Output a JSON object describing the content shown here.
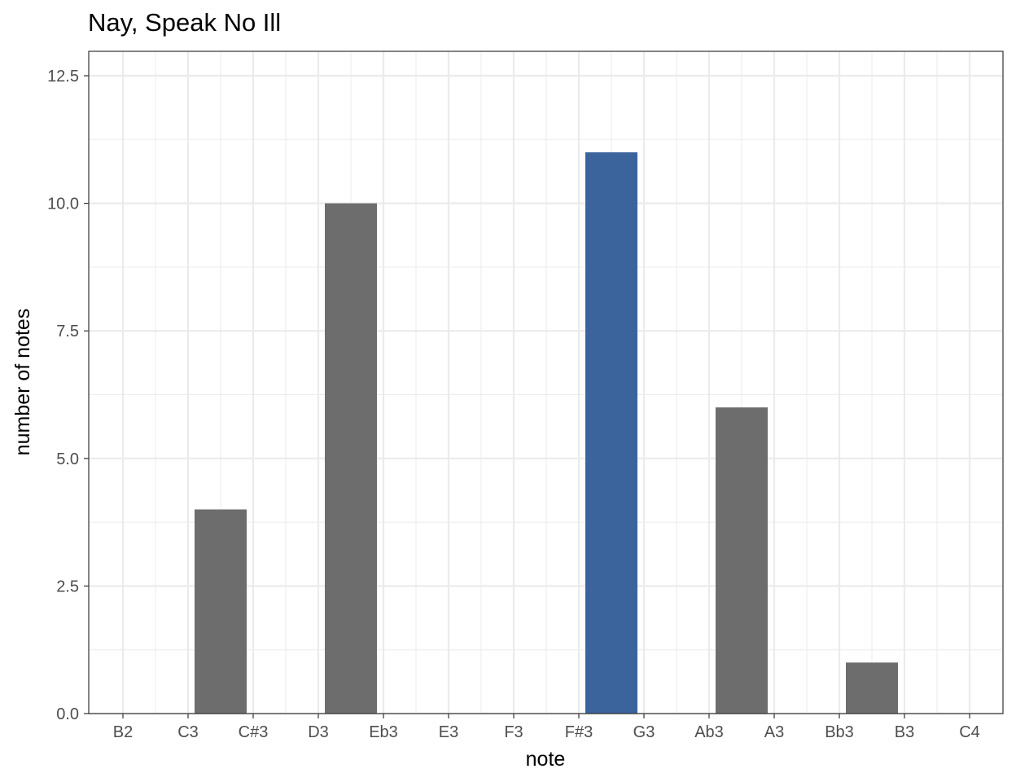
{
  "chart_data": {
    "type": "bar",
    "title": "Nay, Speak No Ill",
    "xlabel": "note",
    "ylabel": "number of notes",
    "categories": [
      "B2",
      "C3",
      "C#3",
      "D3",
      "Eb3",
      "E3",
      "F3",
      "F#3",
      "G3",
      "Ab3",
      "A3",
      "Bb3",
      "B3",
      "C4"
    ],
    "bars": [
      {
        "from": "C3",
        "to": "C#3",
        "value": 4,
        "color": "#6d6d6d"
      },
      {
        "from": "D3",
        "to": "Eb3",
        "value": 10,
        "color": "#6d6d6d"
      },
      {
        "from": "F#3",
        "to": "G3",
        "value": 11,
        "color": "#3a649b"
      },
      {
        "from": "Ab3",
        "to": "A3",
        "value": 6,
        "color": "#6d6d6d"
      },
      {
        "from": "Bb3",
        "to": "B3",
        "value": 1,
        "color": "#6d6d6d"
      }
    ],
    "yticks": [
      "0.0",
      "2.5",
      "5.0",
      "7.5",
      "10.0",
      "12.5"
    ],
    "ylim": [
      0,
      12.5
    ],
    "grid": true,
    "colors": {
      "bar_default": "#6d6d6d",
      "bar_highlight": "#3a649b",
      "grid": "#ebebeb"
    }
  }
}
